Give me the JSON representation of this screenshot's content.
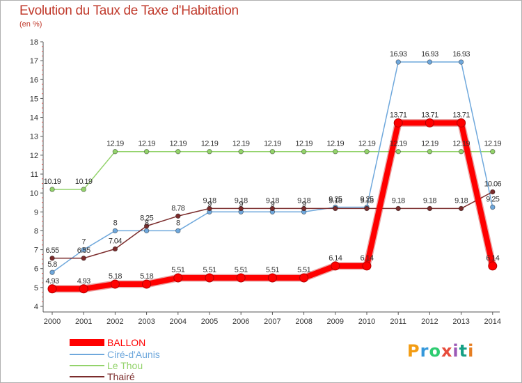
{
  "header": {
    "title": "Evolution du Taux de Taxe d'Habitation",
    "unit": "(en %)"
  },
  "logo": {
    "text": "Proxiti",
    "colors": [
      "#f39c12",
      "#3498db",
      "#2ecc71",
      "#e74c3c",
      "#9b59b6",
      "#16a085",
      "#e67e22"
    ]
  },
  "chart_data": {
    "type": "line",
    "x": [
      "2000",
      "2001",
      "2002",
      "2003",
      "2004",
      "2005",
      "2006",
      "2007",
      "2008",
      "2009",
      "2010",
      "2011",
      "2012",
      "2013",
      "2014"
    ],
    "ylim": [
      4,
      18
    ],
    "yticks": [
      4,
      5,
      6,
      7,
      8,
      9,
      10,
      11,
      12,
      13,
      14,
      15,
      16,
      17,
      18
    ],
    "grid": false,
    "legend_position": "bottom-left",
    "series": [
      {
        "name": "BALLON",
        "color": "#ff0000",
        "values": [
          4.93,
          4.93,
          5.18,
          5.18,
          5.51,
          5.51,
          5.51,
          5.51,
          5.51,
          6.14,
          6.14,
          13.71,
          13.71,
          13.71,
          6.14
        ],
        "labels": [
          "4.93",
          "4.93",
          "5.18",
          "5.18",
          "5.51",
          "5.51",
          "5.51",
          "5.51",
          "5.51",
          "6.14",
          "6.14",
          "13.71",
          "13.71",
          "13.71",
          "6.14"
        ]
      },
      {
        "name": "Ciré-d'Aunis",
        "color": "#6fa8dc",
        "values": [
          5.8,
          7,
          8,
          8,
          8,
          9,
          9,
          9,
          9,
          9.25,
          9.25,
          16.93,
          16.93,
          16.93,
          9.25
        ],
        "labels": [
          "5.8",
          "7",
          "8",
          "8",
          "8",
          "9",
          "9",
          "9",
          "9",
          "9.25",
          "9.25",
          "16.93",
          "16.93",
          "16.93",
          "9.25"
        ]
      },
      {
        "name": "Le Thou",
        "color": "#93d36b",
        "values": [
          10.19,
          10.19,
          12.19,
          12.19,
          12.19,
          12.19,
          12.19,
          12.19,
          12.19,
          12.19,
          12.19,
          12.19,
          12.19,
          12.19,
          12.19
        ],
        "labels": [
          "10.19",
          "10.19",
          "12.19",
          "12.19",
          "12.19",
          "12.19",
          "12.19",
          "12.19",
          "12.19",
          "12.19",
          "12.19",
          "12.19",
          "12.19",
          "12.19",
          "12.19"
        ]
      },
      {
        "name": "Thairé",
        "color": "#7b2c2c",
        "values": [
          6.55,
          6.55,
          7.04,
          8.25,
          8.78,
          9.18,
          9.18,
          9.18,
          9.18,
          9.18,
          9.18,
          9.18,
          9.18,
          9.18,
          10.06
        ],
        "labels": [
          "6.55",
          "6.55",
          "7.04",
          "8.25",
          "8.78",
          "9.18",
          "9.18",
          "9.18",
          "9.18",
          "9.18",
          "9.18",
          "9.18",
          "9.18",
          "9.18",
          "10.06"
        ]
      }
    ]
  }
}
